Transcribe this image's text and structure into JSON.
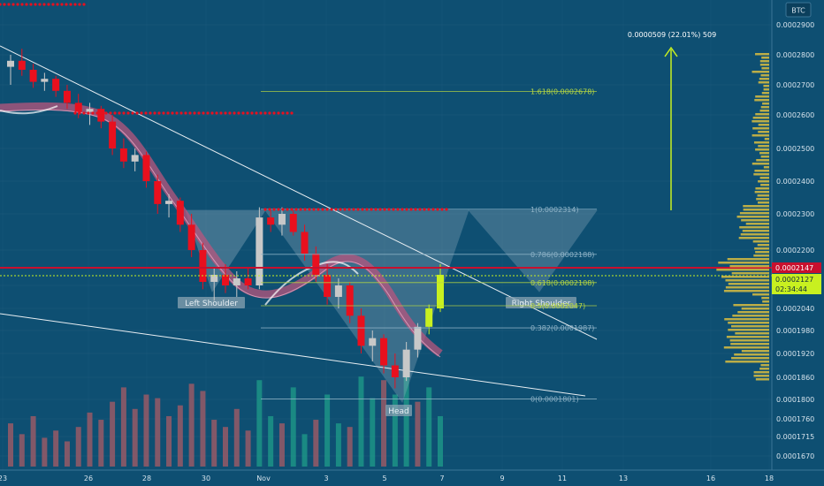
{
  "symbol": "BTC",
  "colors": {
    "background": "#0e4f72",
    "grid": "#2a6486",
    "candle_up": "#c8c8c8",
    "candle_down": "#e8101e",
    "candle_green": "#c8f020",
    "ribbon": "#b8557e",
    "volume_red": "#a95b66",
    "volume_teal": "#1f9c8a",
    "fib": "#b8d840",
    "price_marker": "#c8102e",
    "arrow": "#c8f020",
    "pattern": "#9fb7c6"
  },
  "price_axis": {
    "labels": [
      "0.0002900",
      "0.0002800",
      "0.0002700",
      "0.0002600",
      "0.0002500",
      "0.0002400",
      "0.0002300",
      "0.0002200",
      "0.0002100",
      "0.0002040",
      "0.0001980",
      "0.0001920",
      "0.0001860",
      "0.0001800",
      "0.0001760",
      "0.0001715",
      "0.0001670"
    ]
  },
  "price_tags": [
    {
      "label": "0.0002147",
      "color": "#c8102e"
    },
    {
      "label": "0.0002127",
      "color": "#c8f020"
    },
    {
      "label": "02:34:44",
      "color": "#c8f020"
    }
  ],
  "time_axis": {
    "labels": [
      "23",
      "26",
      "28",
      "30",
      "Nov",
      "3",
      "5",
      "7",
      "9",
      "11",
      "13",
      "16",
      "18"
    ]
  },
  "fib_levels": [
    {
      "label": "1.618(0.0002678)",
      "price": 0.0002678
    },
    {
      "label": "1(0.0002314)",
      "price": 0.0002314
    },
    {
      "label": "0.786(0.0002188)",
      "price": 0.0002188
    },
    {
      "label": "0.618(0.0002108)",
      "price": 0.0002108
    },
    {
      "label": "0.5(0.0002047)",
      "price": 0.0002047
    },
    {
      "label": "0.382(0.0001987)",
      "price": 0.0001987
    },
    {
      "label": "0(0.0001801)",
      "price": 0.0001801
    }
  ],
  "pattern_labels": {
    "left_shoulder": "Left Shoulder",
    "head": "Head",
    "right_shoulder": "Right Shoulder"
  },
  "target_annotation": "0.0000509 (22.01%) 509",
  "chart_data": {
    "type": "candlestick",
    "title": "",
    "x_ticks": [
      "23",
      "26",
      "28",
      "30",
      "Nov",
      "3",
      "5",
      "7",
      "9",
      "11",
      "13",
      "16",
      "18"
    ],
    "y_range": [
      0.000165,
      0.000295
    ],
    "current_price": 0.0002127,
    "marked_price": 0.0002147,
    "candles": [
      {
        "o": 0.000276,
        "h": 0.00028,
        "l": 0.00027,
        "c": 0.000278
      },
      {
        "o": 0.000278,
        "h": 0.000282,
        "l": 0.000273,
        "c": 0.000275
      },
      {
        "o": 0.000275,
        "h": 0.000277,
        "l": 0.000269,
        "c": 0.000271
      },
      {
        "o": 0.000271,
        "h": 0.000274,
        "l": 0.000268,
        "c": 0.000272
      },
      {
        "o": 0.000272,
        "h": 0.000273,
        "l": 0.000266,
        "c": 0.000268
      },
      {
        "o": 0.000268,
        "h": 0.00027,
        "l": 0.000262,
        "c": 0.000264
      },
      {
        "o": 0.000264,
        "h": 0.000267,
        "l": 0.000259,
        "c": 0.000261
      },
      {
        "o": 0.000261,
        "h": 0.000264,
        "l": 0.000257,
        "c": 0.000262
      },
      {
        "o": 0.000262,
        "h": 0.000263,
        "l": 0.000256,
        "c": 0.000258
      },
      {
        "o": 0.000258,
        "h": 0.00026,
        "l": 0.000248,
        "c": 0.00025
      },
      {
        "o": 0.00025,
        "h": 0.000253,
        "l": 0.000244,
        "c": 0.000246
      },
      {
        "o": 0.000246,
        "h": 0.00025,
        "l": 0.000243,
        "c": 0.000248
      },
      {
        "o": 0.000248,
        "h": 0.000249,
        "l": 0.000238,
        "c": 0.00024
      },
      {
        "o": 0.00024,
        "h": 0.000242,
        "l": 0.00023,
        "c": 0.000233
      },
      {
        "o": 0.000233,
        "h": 0.000236,
        "l": 0.000229,
        "c": 0.000234
      },
      {
        "o": 0.000234,
        "h": 0.000235,
        "l": 0.000225,
        "c": 0.000227
      },
      {
        "o": 0.000227,
        "h": 0.00023,
        "l": 0.000218,
        "c": 0.00022
      },
      {
        "o": 0.00022,
        "h": 0.000222,
        "l": 0.000209,
        "c": 0.000211
      },
      {
        "o": 0.000211,
        "h": 0.000215,
        "l": 0.000206,
        "c": 0.000213
      },
      {
        "o": 0.000213,
        "h": 0.000216,
        "l": 0.000208,
        "c": 0.00021
      },
      {
        "o": 0.00021,
        "h": 0.000214,
        "l": 0.000207,
        "c": 0.000212
      },
      {
        "o": 0.000212,
        "h": 0.000215,
        "l": 0.000209,
        "c": 0.00021
      },
      {
        "o": 0.00021,
        "h": 0.000232,
        "l": 0.000209,
        "c": 0.000229
      },
      {
        "o": 0.000229,
        "h": 0.000231,
        "l": 0.000225,
        "c": 0.000227
      },
      {
        "o": 0.000227,
        "h": 0.000232,
        "l": 0.000224,
        "c": 0.00023
      },
      {
        "o": 0.00023,
        "h": 0.000231,
        "l": 0.000224,
        "c": 0.000225
      },
      {
        "o": 0.000225,
        "h": 0.000227,
        "l": 0.000217,
        "c": 0.000219
      },
      {
        "o": 0.000219,
        "h": 0.000221,
        "l": 0.000211,
        "c": 0.000213
      },
      {
        "o": 0.000213,
        "h": 0.000216,
        "l": 0.000205,
        "c": 0.000207
      },
      {
        "o": 0.000207,
        "h": 0.000212,
        "l": 0.000204,
        "c": 0.00021
      },
      {
        "o": 0.00021,
        "h": 0.000211,
        "l": 0.0002,
        "c": 0.000202
      },
      {
        "o": 0.000202,
        "h": 0.000204,
        "l": 0.000192,
        "c": 0.000194
      },
      {
        "o": 0.000194,
        "h": 0.000198,
        "l": 0.00019,
        "c": 0.000196
      },
      {
        "o": 0.000196,
        "h": 0.000197,
        "l": 0.000187,
        "c": 0.000189
      },
      {
        "o": 0.000189,
        "h": 0.000192,
        "l": 0.000183,
        "c": 0.000186
      },
      {
        "o": 0.000186,
        "h": 0.000195,
        "l": 0.000185,
        "c": 0.000193
      },
      {
        "o": 0.000193,
        "h": 0.0002,
        "l": 0.000191,
        "c": 0.000199
      },
      {
        "o": 0.000199,
        "h": 0.000205,
        "l": 0.000197,
        "c": 0.000204
      },
      {
        "o": 0.000204,
        "h": 0.000216,
        "l": 0.000203,
        "c": 0.000213
      }
    ],
    "volume": [
      12,
      9,
      14,
      8,
      10,
      7,
      11,
      15,
      13,
      18,
      22,
      16,
      20,
      19,
      14,
      17,
      23,
      21,
      13,
      11,
      16,
      10,
      24,
      14,
      12,
      22,
      9,
      13,
      20,
      12,
      11,
      25,
      19,
      24,
      20,
      27,
      18,
      22,
      14
    ]
  }
}
